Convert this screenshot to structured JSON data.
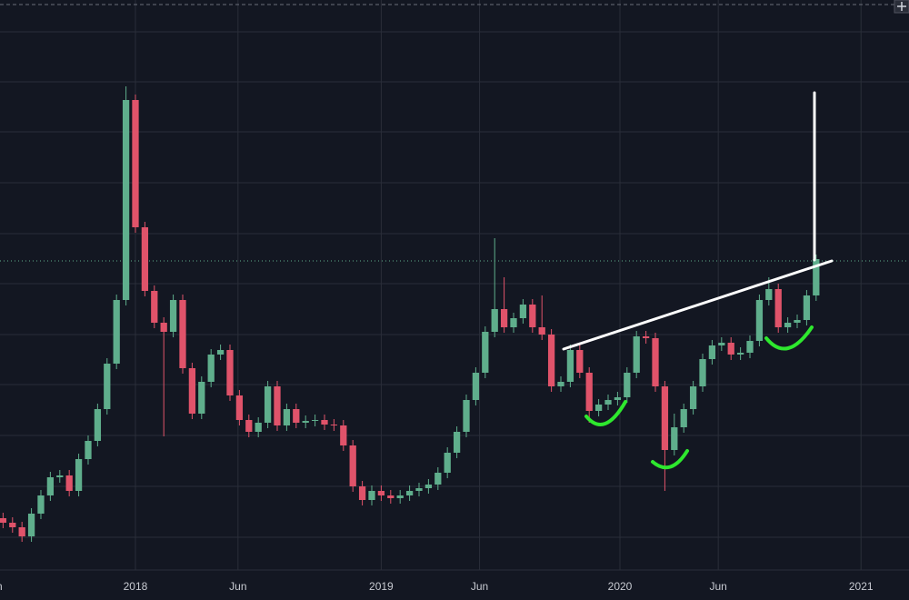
{
  "chart_data": {
    "type": "candlestick",
    "xlim": [
      -28.65,
      163.65
    ],
    "ylim": [
      0,
      625
    ],
    "xticks": [
      {
        "value": -30,
        "label": "Jun"
      },
      {
        "value": 0,
        "label": "2018"
      },
      {
        "value": 21.7,
        "label": "Jun"
      },
      {
        "value": 52,
        "label": "2019"
      },
      {
        "value": 72.8,
        "label": "Jun"
      },
      {
        "value": 102.5,
        "label": "2020"
      },
      {
        "value": 123.3,
        "label": "Jun"
      },
      {
        "value": 153.5,
        "label": "2021"
      }
    ],
    "grid": true,
    "up_color": "#5fae8c",
    "down_color": "#e0536a",
    "x": [
      -28,
      -26,
      -24,
      -22,
      -20,
      -18,
      -16,
      -14,
      -12,
      -10,
      -8,
      -6,
      -4,
      -2,
      0,
      2,
      4,
      6,
      8,
      10,
      12,
      14,
      16,
      18,
      20,
      22,
      24,
      26,
      28,
      30,
      32,
      34,
      36,
      38,
      40,
      42,
      44,
      46,
      48,
      50,
      52,
      54,
      56,
      58,
      60,
      62,
      64,
      66,
      68,
      70,
      72,
      74,
      76,
      78,
      80,
      82,
      84,
      86,
      88,
      90,
      92,
      94,
      96,
      98,
      100,
      102,
      104,
      106,
      108,
      110,
      112,
      114,
      116,
      118,
      120,
      122,
      124,
      126,
      128,
      130,
      132,
      134,
      136,
      138,
      140,
      142,
      144
    ],
    "open": [
      55,
      50,
      45,
      35,
      60,
      80,
      100,
      102,
      85,
      120,
      140,
      175,
      225,
      295,
      515,
      375,
      305,
      270,
      260,
      295,
      220,
      170,
      205,
      235,
      240,
      190,
      163,
      150,
      160,
      200,
      157,
      175,
      160,
      162,
      163,
      158,
      157,
      135,
      90,
      75,
      85,
      80,
      77,
      80,
      85,
      88,
      92,
      105,
      127,
      150,
      185,
      215,
      260,
      285,
      265,
      275,
      290,
      265,
      257,
      200,
      205,
      240,
      215,
      173,
      180,
      185,
      188,
      215,
      255,
      253,
      200,
      130,
      155,
      175,
      200,
      230,
      245,
      248,
      235,
      237,
      250,
      295,
      307,
      265,
      270,
      273,
      300
    ],
    "high": [
      61,
      56,
      51,
      66,
      86,
      106,
      108,
      108,
      126,
      146,
      181,
      231,
      301,
      530,
      521,
      381,
      311,
      276,
      301,
      301,
      226,
      211,
      241,
      246,
      246,
      196,
      169,
      166,
      206,
      206,
      181,
      181,
      168,
      169,
      169,
      164,
      163,
      141,
      96,
      91,
      91,
      86,
      86,
      91,
      94,
      98,
      111,
      133,
      156,
      191,
      221,
      266,
      363,
      320,
      281,
      296,
      296,
      300,
      263,
      211,
      246,
      246,
      221,
      186,
      191,
      194,
      221,
      261,
      261,
      259,
      206,
      170,
      181,
      206,
      236,
      251,
      254,
      254,
      243,
      256,
      301,
      320,
      313,
      276,
      279,
      306,
      345
    ],
    "low": [
      44,
      39,
      29,
      29,
      54,
      74,
      94,
      79,
      79,
      114,
      134,
      169,
      219,
      289,
      369,
      299,
      264,
      145,
      254,
      214,
      164,
      164,
      199,
      229,
      184,
      157,
      144,
      144,
      154,
      151,
      151,
      154,
      154,
      156,
      152,
      151,
      129,
      84,
      69,
      69,
      74,
      71,
      71,
      74,
      79,
      82,
      86,
      99,
      121,
      144,
      179,
      209,
      254,
      259,
      259,
      269,
      259,
      251,
      194,
      194,
      199,
      209,
      160,
      167,
      174,
      179,
      182,
      209,
      247,
      194,
      85,
      124,
      149,
      169,
      194,
      224,
      239,
      229,
      229,
      231,
      244,
      289,
      259,
      259,
      264,
      267,
      294
    ],
    "close": [
      50,
      45,
      35,
      60,
      80,
      100,
      102,
      85,
      120,
      140,
      175,
      225,
      295,
      515,
      375,
      305,
      270,
      260,
      295,
      220,
      170,
      205,
      235,
      240,
      190,
      163,
      150,
      160,
      200,
      157,
      175,
      160,
      162,
      163,
      158,
      157,
      135,
      90,
      75,
      85,
      80,
      77,
      80,
      85,
      88,
      92,
      105,
      127,
      150,
      185,
      215,
      260,
      285,
      265,
      275,
      290,
      265,
      257,
      200,
      205,
      240,
      215,
      173,
      180,
      185,
      188,
      215,
      255,
      253,
      200,
      130,
      155,
      175,
      200,
      230,
      245,
      248,
      235,
      237,
      250,
      295,
      307,
      265,
      270,
      273,
      300,
      340
    ]
  }
}
